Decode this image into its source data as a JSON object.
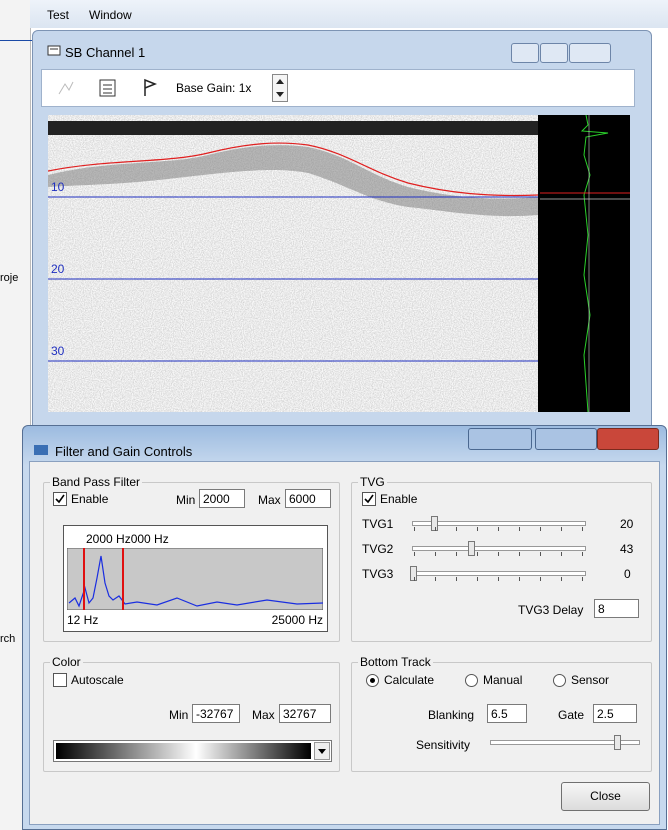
{
  "menu": {
    "items": [
      "Test",
      "Window"
    ]
  },
  "left_panel": {
    "clipped_texts": [
      "roje",
      "rch"
    ]
  },
  "channel_window": {
    "title": "SB Channel 1",
    "toolbar": {
      "base_gain": "Base Gain: 1x"
    },
    "depth_labels": [
      "10",
      "20",
      "30"
    ]
  },
  "dialog": {
    "title": "Filter and Gain Controls",
    "band_pass": {
      "title": "Band Pass Filter",
      "enable": "Enable",
      "min_label": "Min",
      "min": "2000",
      "max_label": "Max",
      "max": "6000",
      "graph": {
        "marker_label": "2000 Hz000 Hz",
        "x_start": "12 Hz",
        "x_end": "25000 Hz"
      }
    },
    "tvg": {
      "title": "TVG",
      "enable": "Enable",
      "sliders": [
        {
          "label": "TVG1",
          "value": "20"
        },
        {
          "label": "TVG2",
          "value": "43"
        },
        {
          "label": "TVG3",
          "value": "0"
        }
      ],
      "delay_label": "TVG3 Delay",
      "delay": "8"
    },
    "color": {
      "title": "Color",
      "autoscale": "Autoscale",
      "min_label": "Min",
      "min": "-32767",
      "max_label": "Max",
      "max": "32767"
    },
    "bottom_track": {
      "title": "Bottom Track",
      "modes": [
        "Calculate",
        "Manual",
        "Sensor"
      ],
      "blanking_label": "Blanking",
      "blanking": "6.5",
      "gate_label": "Gate",
      "gate": "2.5",
      "sensitivity_label": "Sensitivity"
    },
    "close": "Close"
  }
}
